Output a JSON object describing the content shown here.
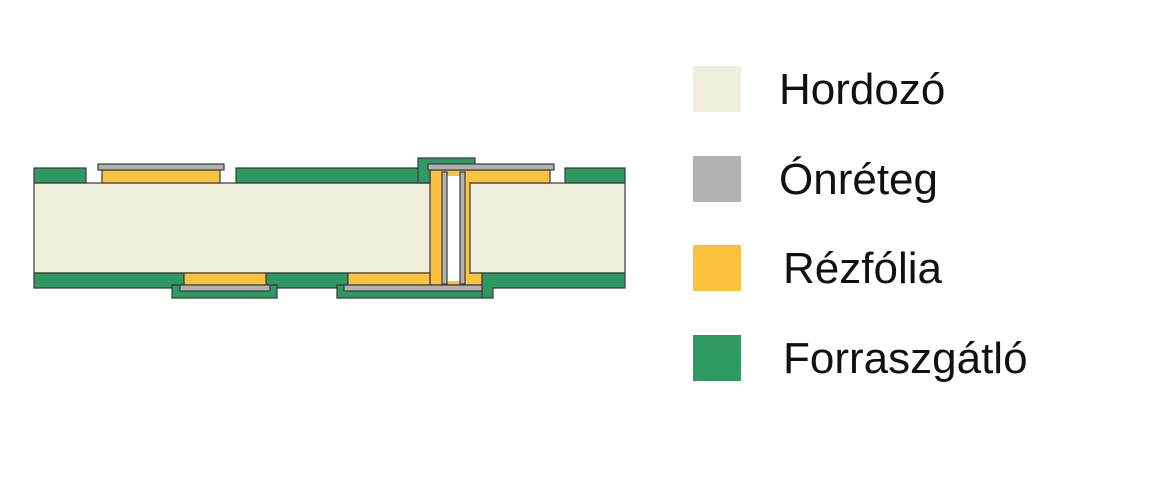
{
  "colors": {
    "substrate": "#F0EEDC",
    "finish": "#B2B2B2",
    "copper": "#FAC23E",
    "solder_mask": "#2E9962",
    "outline": "#3A3A3A"
  },
  "legend": {
    "items": [
      {
        "key": "substrate",
        "label": "Hordozó",
        "color": "#F0EEDC"
      },
      {
        "key": "finish",
        "label": "Ónréteg",
        "color": "#B2B2B2"
      },
      {
        "key": "copper",
        "label": "Rézfólia",
        "color": "#FAC23E"
      },
      {
        "key": "solder_mask",
        "label": "Forraszgátló",
        "color": "#2E9962"
      }
    ]
  }
}
